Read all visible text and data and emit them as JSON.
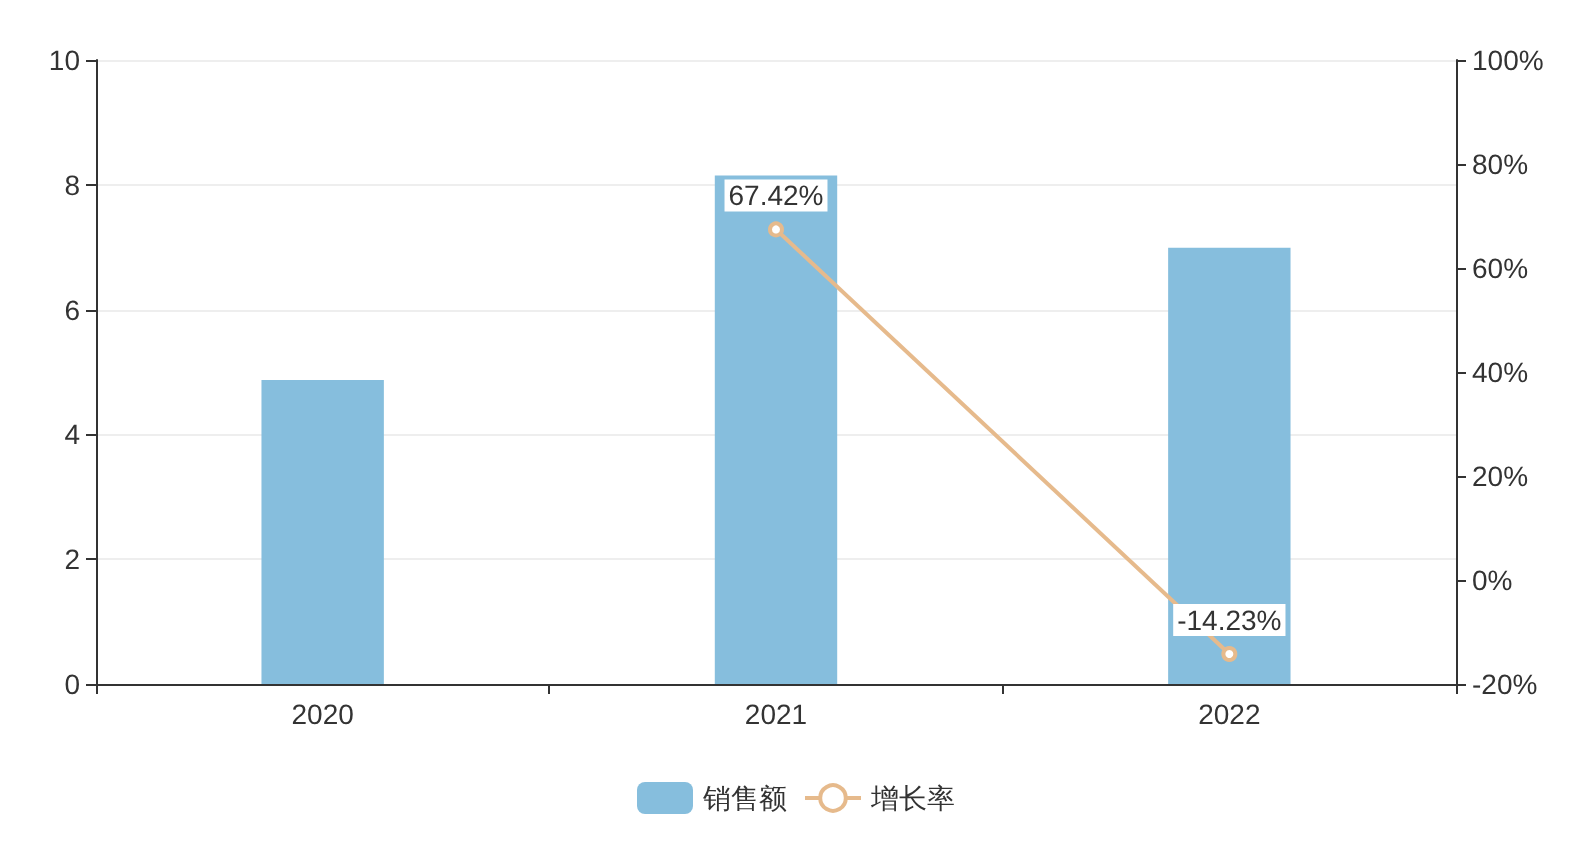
{
  "chart_data": {
    "type": "bar",
    "categories": [
      "2020",
      "2021",
      "2022"
    ],
    "series": [
      {
        "name": "销售额",
        "color": "#86bedd",
        "values": [
          4.87,
          8.15,
          6.99
        ]
      },
      {
        "name": "增长率",
        "type": "line",
        "axis": "y2",
        "color": "#e6ba8c",
        "values": [
          null,
          67.42,
          -14.23
        ],
        "value_labels": [
          null,
          "67.42%",
          "-14.23%"
        ]
      }
    ],
    "ylim": [
      0,
      10
    ],
    "yticks": [
      0,
      2,
      4,
      6,
      8,
      10
    ],
    "y2lim": [
      -20,
      100
    ],
    "y2ticks": [
      {
        "value": -20,
        "label": "-20%"
      },
      {
        "value": 0,
        "label": "0%"
      },
      {
        "value": 20,
        "label": "20%"
      },
      {
        "value": 40,
        "label": "40%"
      },
      {
        "value": 60,
        "label": "60%"
      },
      {
        "value": 80,
        "label": "80%"
      },
      {
        "value": 100,
        "label": "100%"
      }
    ],
    "grid": "y",
    "legend": "bottom",
    "marker": "circle",
    "line_style": "solid"
  }
}
